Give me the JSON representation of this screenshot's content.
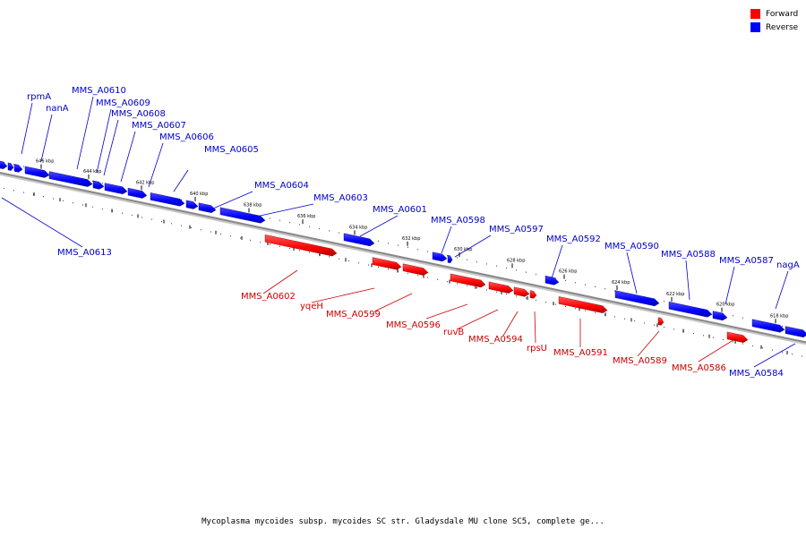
{
  "caption": "Mycoplasma mycoides subsp. mycoides SC str. Gladysdale MU clone SC5, complete ge...",
  "legend": [
    {
      "label": "Forward",
      "color": "#ff0000"
    },
    {
      "label": "Reverse",
      "color": "#0000ff"
    }
  ],
  "colors": {
    "forward": "#ff0000",
    "reverse": "#0000ff",
    "forward_label": "#cc0000",
    "reverse_label": "#0000cc",
    "backbone": "#888888"
  },
  "ticks": [
    "646 kbp",
    "644 kbp",
    "642 kbp",
    "640 kbp",
    "638 kbp",
    "636 kbp",
    "634 kbp",
    "632 kbp",
    "630 kbp",
    "628 kbp",
    "626 kbp",
    "624 kbp",
    "622 kbp",
    "620 kbp",
    "618 kbp"
  ],
  "reverse_genes": [
    "rpmA",
    "nanA",
    "MMS_A0610",
    "MMS_A0609",
    "MMS_A0608",
    "MMS_A0607",
    "MMS_A0606",
    "MMS_A0605",
    "MMS_A0604",
    "MMS_A0603",
    "MMS_A0601",
    "MMS_A0598",
    "MMS_A0597",
    "MMS_A0592",
    "MMS_A0590",
    "MMS_A0588",
    "MMS_A0587",
    "nagA",
    "MMS_A0613",
    "MMS_A0584"
  ],
  "forward_genes": [
    "MMS_A0602",
    "yqeH",
    "MMS_A0599",
    "MMS_A0596",
    "ruvB",
    "MMS_A0594",
    "rpsU",
    "MMS_A0591",
    "MMS_A0589",
    "MMS_A0586"
  ]
}
